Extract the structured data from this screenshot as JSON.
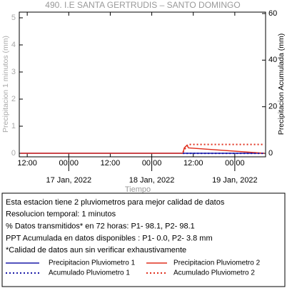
{
  "chart_data": {
    "type": "line",
    "title": "490. I.E SANTA GERTRUDIS – SANTO DOMINGO",
    "ylabel": "Precipitacion 1 minutos (mm)",
    "y2label": "Precipitacion Acumulada (mm)",
    "xlabel": "Tiempo",
    "x": [
      -14,
      33,
      33.4,
      33.8,
      34.2,
      34.6,
      56.5
    ],
    "xlim": [
      -14.3,
      56.9
    ],
    "xticks": [
      {
        "value": -12,
        "label": "12:00"
      },
      {
        "value": 0,
        "label": "00:00"
      },
      {
        "value": 12,
        "label": "12:00"
      },
      {
        "value": 24,
        "label": "00:00"
      },
      {
        "value": 36,
        "label": "12:00"
      },
      {
        "value": 48,
        "label": "00:00"
      }
    ],
    "xtick_dates": [
      {
        "value": 0,
        "label": "17 Jan, 2022"
      },
      {
        "value": 24,
        "label": "18 Jan, 2022"
      },
      {
        "value": 48,
        "label": "19 Jan, 2022"
      }
    ],
    "ylim": [
      -0.13,
      5.21
    ],
    "yticks": [
      0,
      1,
      2,
      3,
      4,
      5
    ],
    "y2lim": [
      -1.5,
      60.6
    ],
    "y2ticks": [
      0,
      20,
      40,
      60
    ],
    "series": [
      {
        "name": "Precipitacion Pluviometro 1",
        "color": "#1a1aa8",
        "style": "solid",
        "values": [
          0,
          0,
          0,
          0,
          0,
          0,
          0
        ]
      },
      {
        "name": "Precipitacion Pluviometro 2",
        "color": "#e0301e",
        "style": "solid",
        "values": [
          0,
          0,
          0.2,
          0.25,
          0.3,
          0.2,
          0
        ]
      },
      {
        "name": "Acumulado Pluviometro 1",
        "color": "#1a1aa8",
        "style": "dotted",
        "axis": "y2",
        "values": [
          null,
          0,
          0,
          0,
          0,
          0,
          0
        ]
      },
      {
        "name": "Acumulado Pluviometro 2",
        "color": "#e0301e",
        "style": "dotted",
        "axis": "y2",
        "values": [
          null,
          0.5,
          1.3,
          2.4,
          3.2,
          3.8,
          3.8
        ]
      }
    ],
    "notes": [
      "Esta estacion tiene 2 pluviometros para mejor calidad de datos",
      "Resolucion temporal: 1 minutos",
      "% Datos transmitidos* en 72 horas: P1- 98.1, P2- 98.1",
      "PPT Acumulada en datos disponibles : P1-  0.0, P2-  3.8 mm",
      "*Calidad de datos aun sin verificar exhaustivamente"
    ]
  }
}
